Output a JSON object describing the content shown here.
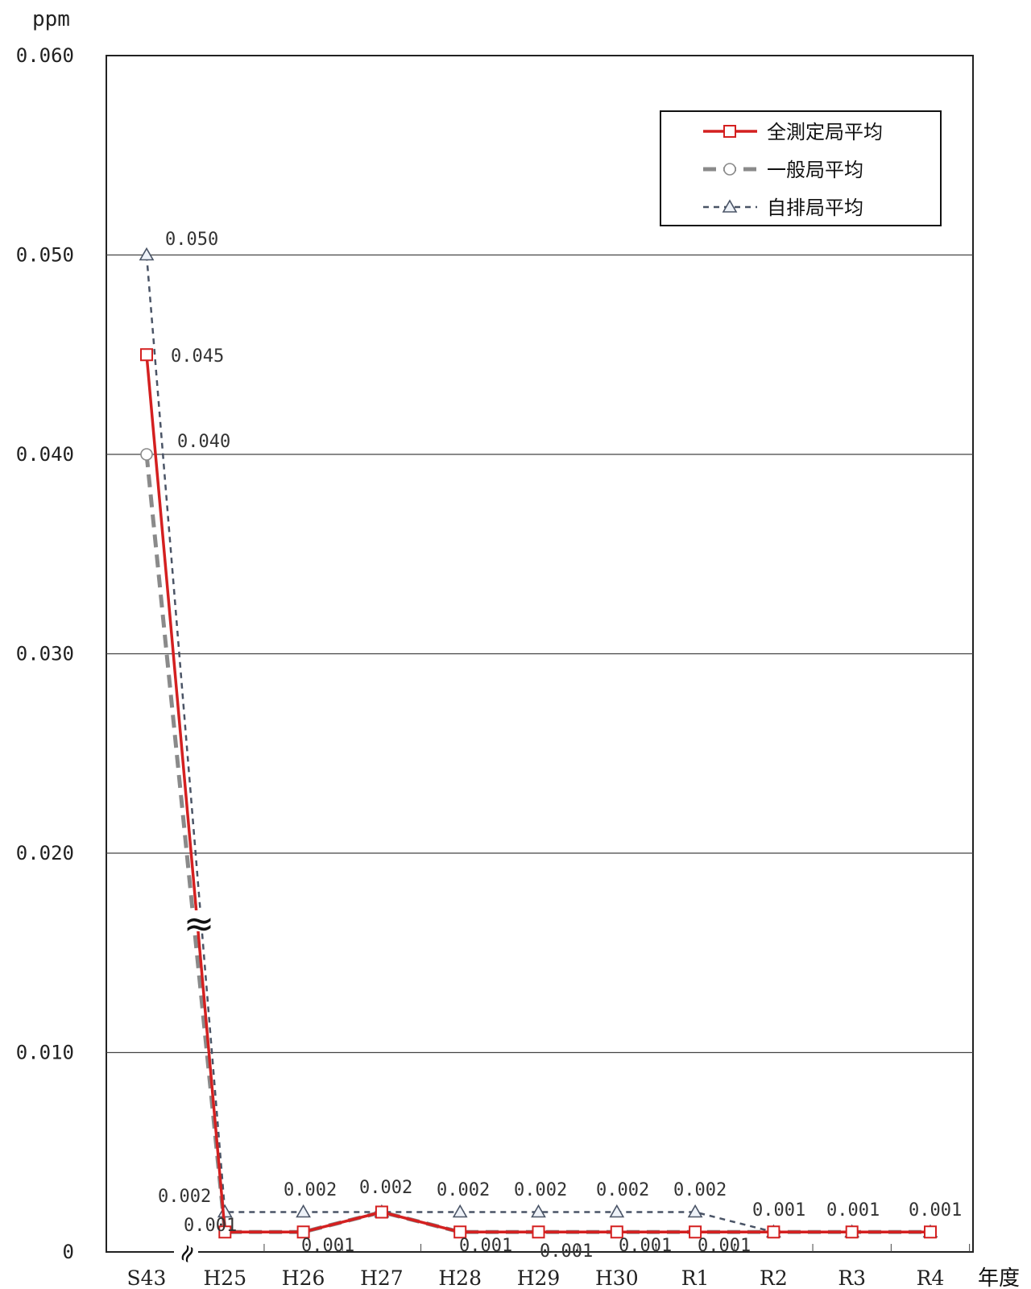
{
  "chart_data": {
    "type": "line",
    "ylabel": "ppm",
    "xlabel": "年度",
    "ylim": [
      0,
      0.06
    ],
    "yticks": [
      "0",
      "0.010",
      "0.020",
      "0.030",
      "0.040",
      "0.050",
      "0.060"
    ],
    "grid": true,
    "legend_position": "top-right",
    "axis_break": "≈",
    "categories": [
      "S43",
      "H25",
      "H26",
      "H27",
      "H28",
      "H29",
      "H30",
      "R1",
      "R2",
      "R3",
      "R4"
    ],
    "series": [
      {
        "name": "全測定局平均",
        "color": "#d42020",
        "marker": "square",
        "values": [
          0.045,
          0.001,
          0.001,
          0.002,
          0.001,
          0.001,
          0.001,
          0.001,
          0.001,
          0.001,
          0.001
        ],
        "labels": [
          "0.045",
          "0.001",
          "0.001",
          "",
          "0.001",
          "0.001",
          "0.001",
          "0.001",
          "",
          "",
          ""
        ]
      },
      {
        "name": "一般局平均",
        "color": "#8a8a8a",
        "marker": "circle",
        "values": [
          0.04,
          0.001,
          0.001,
          0.002,
          0.001,
          0.001,
          0.001,
          0.001,
          0.001,
          0.001,
          0.001
        ],
        "labels": [
          "0.040",
          "",
          "",
          "",
          "",
          "",
          "",
          "",
          "",
          "",
          ""
        ]
      },
      {
        "name": "自排局平均",
        "color": "#4a5466",
        "marker": "triangle",
        "values": [
          0.05,
          0.002,
          0.002,
          0.002,
          0.002,
          0.002,
          0.002,
          0.002,
          0.001,
          0.001,
          0.001
        ],
        "labels": [
          "0.050",
          "0.002",
          "0.002",
          "0.002",
          "0.002",
          "0.002",
          "0.002",
          "0.002",
          "0.001",
          "0.001",
          "0.001"
        ]
      }
    ]
  }
}
